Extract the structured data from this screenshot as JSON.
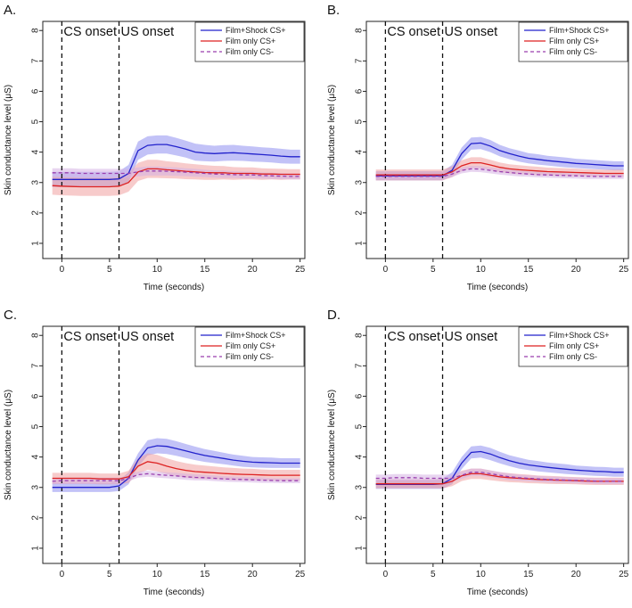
{
  "figure": {
    "panels": [
      "A.",
      "B.",
      "C.",
      "D."
    ]
  },
  "colors": {
    "shock": "#2222cc",
    "shock_band": "#8f8ff0",
    "red": "#dd2222",
    "red_band": "#f0a0a0",
    "cs_minus": "#9a3fae",
    "cs_minus_band": "#d6b2e3",
    "axis": "#111111"
  },
  "chart_data": [
    {
      "type": "line",
      "panel": "A.",
      "xlabel": "Time (seconds)",
      "ylabel": "Skin conductance level (μS)",
      "xlim": [
        -2,
        25.5
      ],
      "ylim": [
        0.5,
        8.3
      ],
      "xticks": [
        0,
        5,
        10,
        15,
        20,
        25
      ],
      "yticks": [
        1,
        2,
        3,
        4,
        5,
        6,
        7,
        8
      ],
      "vlines": [
        {
          "x": 0,
          "label": "CS onset"
        },
        {
          "x": 6,
          "label": "US onset"
        }
      ],
      "legend": {
        "position": "top-right"
      },
      "x": [
        -1,
        0,
        1,
        2,
        3,
        4,
        5,
        6,
        7,
        8,
        9,
        10,
        11,
        12,
        13,
        14,
        15,
        16,
        17,
        18,
        19,
        20,
        21,
        22,
        23,
        24,
        25
      ],
      "series": [
        {
          "name": "Film+Shock CS+",
          "style": "solid",
          "color_key": "shock",
          "values": [
            3.1,
            3.1,
            3.1,
            3.1,
            3.1,
            3.1,
            3.1,
            3.12,
            3.3,
            4.05,
            4.22,
            4.25,
            4.25,
            4.18,
            4.1,
            4.0,
            3.97,
            3.95,
            3.97,
            3.98,
            3.96,
            3.94,
            3.92,
            3.9,
            3.87,
            3.85,
            3.85
          ],
          "band": [
            0.25,
            0.25,
            0.25,
            0.25,
            0.25,
            0.25,
            0.25,
            0.25,
            0.28,
            0.3,
            0.3,
            0.3,
            0.3,
            0.29,
            0.28,
            0.28,
            0.27,
            0.26,
            0.26,
            0.26,
            0.25,
            0.25,
            0.24,
            0.24,
            0.24,
            0.23,
            0.23
          ]
        },
        {
          "name": "Film only CS+",
          "style": "solid",
          "color_key": "red",
          "values": [
            2.9,
            2.88,
            2.87,
            2.86,
            2.86,
            2.86,
            2.86,
            2.88,
            3.0,
            3.35,
            3.45,
            3.45,
            3.42,
            3.4,
            3.37,
            3.35,
            3.33,
            3.32,
            3.32,
            3.3,
            3.3,
            3.3,
            3.28,
            3.28,
            3.27,
            3.27,
            3.27
          ],
          "band": [
            0.3,
            0.3,
            0.3,
            0.3,
            0.3,
            0.3,
            0.3,
            0.3,
            0.3,
            0.3,
            0.3,
            0.3,
            0.28,
            0.27,
            0.26,
            0.25,
            0.24,
            0.23,
            0.22,
            0.21,
            0.2,
            0.2,
            0.19,
            0.18,
            0.18,
            0.17,
            0.17
          ]
        },
        {
          "name": "Film only CS-",
          "style": "dashed",
          "color_key": "cs_minus",
          "values": [
            3.32,
            3.32,
            3.32,
            3.3,
            3.3,
            3.3,
            3.3,
            3.3,
            3.3,
            3.35,
            3.38,
            3.38,
            3.37,
            3.36,
            3.34,
            3.32,
            3.3,
            3.28,
            3.27,
            3.26,
            3.25,
            3.25,
            3.23,
            3.22,
            3.21,
            3.2,
            3.2
          ],
          "band": [
            0.15,
            0.15,
            0.15,
            0.15,
            0.15,
            0.15,
            0.15,
            0.15,
            0.15,
            0.15,
            0.15,
            0.15,
            0.14,
            0.14,
            0.13,
            0.13,
            0.12,
            0.12,
            0.12,
            0.11,
            0.11,
            0.11,
            0.1,
            0.1,
            0.1,
            0.1,
            0.1
          ]
        }
      ]
    },
    {
      "type": "line",
      "panel": "B.",
      "xlabel": "Time (seconds)",
      "ylabel": "Skin conductance level (μS)",
      "xlim": [
        -2,
        25.5
      ],
      "ylim": [
        0.5,
        8.3
      ],
      "xticks": [
        0,
        5,
        10,
        15,
        20,
        25
      ],
      "yticks": [
        1,
        2,
        3,
        4,
        5,
        6,
        7,
        8
      ],
      "vlines": [
        {
          "x": 0,
          "label": "CS onset"
        },
        {
          "x": 6,
          "label": "US onset"
        }
      ],
      "legend": {
        "position": "top-right"
      },
      "x": [
        -1,
        0,
        1,
        2,
        3,
        4,
        5,
        6,
        7,
        8,
        9,
        10,
        11,
        12,
        13,
        14,
        15,
        16,
        17,
        18,
        19,
        20,
        21,
        22,
        23,
        24,
        25
      ],
      "series": [
        {
          "name": "Film+Shock CS+",
          "style": "solid",
          "color_key": "shock",
          "values": [
            3.22,
            3.22,
            3.22,
            3.22,
            3.22,
            3.22,
            3.22,
            3.22,
            3.4,
            3.95,
            4.28,
            4.3,
            4.2,
            4.05,
            3.95,
            3.87,
            3.8,
            3.76,
            3.72,
            3.69,
            3.66,
            3.63,
            3.61,
            3.59,
            3.57,
            3.55,
            3.55
          ],
          "band": [
            0.15,
            0.15,
            0.15,
            0.15,
            0.15,
            0.15,
            0.15,
            0.15,
            0.18,
            0.2,
            0.2,
            0.2,
            0.2,
            0.19,
            0.18,
            0.18,
            0.17,
            0.17,
            0.16,
            0.16,
            0.16,
            0.15,
            0.15,
            0.15,
            0.15,
            0.15,
            0.15
          ]
        },
        {
          "name": "Film only CS+",
          "style": "solid",
          "color_key": "red",
          "values": [
            3.25,
            3.25,
            3.25,
            3.25,
            3.25,
            3.25,
            3.25,
            3.25,
            3.35,
            3.55,
            3.65,
            3.65,
            3.58,
            3.5,
            3.45,
            3.42,
            3.4,
            3.38,
            3.36,
            3.35,
            3.34,
            3.33,
            3.32,
            3.31,
            3.3,
            3.3,
            3.3
          ],
          "band": [
            0.18,
            0.18,
            0.18,
            0.18,
            0.18,
            0.18,
            0.18,
            0.18,
            0.18,
            0.18,
            0.18,
            0.18,
            0.17,
            0.16,
            0.15,
            0.15,
            0.14,
            0.14,
            0.13,
            0.13,
            0.13,
            0.13,
            0.12,
            0.12,
            0.12,
            0.12,
            0.12
          ]
        },
        {
          "name": "Film only CS-",
          "style": "dashed",
          "color_key": "cs_minus",
          "values": [
            3.2,
            3.2,
            3.2,
            3.2,
            3.2,
            3.2,
            3.2,
            3.2,
            3.28,
            3.4,
            3.45,
            3.44,
            3.4,
            3.36,
            3.33,
            3.3,
            3.28,
            3.26,
            3.25,
            3.24,
            3.23,
            3.22,
            3.21,
            3.2,
            3.2,
            3.2,
            3.2
          ],
          "band": [
            0.1,
            0.1,
            0.1,
            0.1,
            0.1,
            0.1,
            0.1,
            0.1,
            0.1,
            0.1,
            0.1,
            0.1,
            0.1,
            0.1,
            0.1,
            0.1,
            0.09,
            0.09,
            0.09,
            0.09,
            0.09,
            0.09,
            0.09,
            0.08,
            0.08,
            0.08,
            0.08
          ]
        }
      ]
    },
    {
      "type": "line",
      "panel": "C.",
      "xlabel": "Time (seconds)",
      "ylabel": "Skin conductance level (μS)",
      "xlim": [
        -2,
        25.5
      ],
      "ylim": [
        0.5,
        8.3
      ],
      "xticks": [
        0,
        5,
        10,
        15,
        20,
        25
      ],
      "yticks": [
        1,
        2,
        3,
        4,
        5,
        6,
        7,
        8
      ],
      "vlines": [
        {
          "x": 0,
          "label": "CS onset"
        },
        {
          "x": 6,
          "label": "US onset"
        }
      ],
      "legend": {
        "position": "top-right"
      },
      "x": [
        -1,
        0,
        1,
        2,
        3,
        4,
        5,
        6,
        7,
        8,
        9,
        10,
        11,
        12,
        13,
        14,
        15,
        16,
        17,
        18,
        19,
        20,
        21,
        22,
        23,
        24,
        25
      ],
      "series": [
        {
          "name": "Film+Shock CS+",
          "style": "solid",
          "color_key": "shock",
          "values": [
            3.0,
            3.0,
            3.0,
            3.0,
            3.0,
            3.0,
            3.0,
            3.05,
            3.3,
            3.9,
            4.3,
            4.37,
            4.35,
            4.28,
            4.2,
            4.12,
            4.05,
            4.0,
            3.95,
            3.9,
            3.86,
            3.83,
            3.82,
            3.81,
            3.8,
            3.8,
            3.8
          ],
          "band": [
            0.15,
            0.15,
            0.15,
            0.15,
            0.15,
            0.15,
            0.15,
            0.17,
            0.2,
            0.22,
            0.25,
            0.25,
            0.25,
            0.24,
            0.23,
            0.22,
            0.21,
            0.2,
            0.19,
            0.18,
            0.18,
            0.17,
            0.17,
            0.17,
            0.16,
            0.16,
            0.16
          ]
        },
        {
          "name": "Film only CS+",
          "style": "solid",
          "color_key": "red",
          "values": [
            3.3,
            3.3,
            3.3,
            3.3,
            3.3,
            3.28,
            3.28,
            3.28,
            3.35,
            3.7,
            3.85,
            3.8,
            3.7,
            3.62,
            3.56,
            3.52,
            3.5,
            3.48,
            3.46,
            3.44,
            3.43,
            3.42,
            3.41,
            3.4,
            3.4,
            3.4,
            3.4
          ],
          "band": [
            0.18,
            0.18,
            0.18,
            0.18,
            0.18,
            0.18,
            0.18,
            0.18,
            0.2,
            0.25,
            0.27,
            0.27,
            0.26,
            0.25,
            0.24,
            0.23,
            0.22,
            0.21,
            0.2,
            0.2,
            0.19,
            0.19,
            0.18,
            0.18,
            0.18,
            0.18,
            0.18
          ]
        },
        {
          "name": "Film only CS-",
          "style": "dashed",
          "color_key": "cs_minus",
          "values": [
            3.2,
            3.22,
            3.22,
            3.22,
            3.22,
            3.22,
            3.22,
            3.22,
            3.3,
            3.42,
            3.45,
            3.42,
            3.4,
            3.38,
            3.35,
            3.33,
            3.32,
            3.3,
            3.28,
            3.27,
            3.26,
            3.25,
            3.24,
            3.23,
            3.22,
            3.22,
            3.22
          ],
          "band": [
            0.1,
            0.1,
            0.1,
            0.1,
            0.1,
            0.1,
            0.1,
            0.1,
            0.1,
            0.1,
            0.1,
            0.1,
            0.1,
            0.1,
            0.1,
            0.1,
            0.09,
            0.09,
            0.09,
            0.09,
            0.09,
            0.09,
            0.09,
            0.08,
            0.08,
            0.08,
            0.08
          ]
        }
      ]
    },
    {
      "type": "line",
      "panel": "D.",
      "xlabel": "Time (seconds)",
      "ylabel": "Skin conductance level (μS)",
      "xlim": [
        -2,
        25.5
      ],
      "ylim": [
        0.5,
        8.3
      ],
      "xticks": [
        0,
        5,
        10,
        15,
        20,
        25
      ],
      "yticks": [
        1,
        2,
        3,
        4,
        5,
        6,
        7,
        8
      ],
      "vlines": [
        {
          "x": 0,
          "label": "CS onset"
        },
        {
          "x": 6,
          "label": "US onset"
        }
      ],
      "legend": {
        "position": "top-right"
      },
      "x": [
        -1,
        0,
        1,
        2,
        3,
        4,
        5,
        6,
        7,
        8,
        9,
        10,
        11,
        12,
        13,
        14,
        15,
        16,
        17,
        18,
        19,
        20,
        21,
        22,
        23,
        24,
        25
      ],
      "series": [
        {
          "name": "Film+Shock CS+",
          "style": "solid",
          "color_key": "shock",
          "values": [
            3.1,
            3.1,
            3.1,
            3.1,
            3.1,
            3.1,
            3.1,
            3.12,
            3.3,
            3.8,
            4.15,
            4.18,
            4.1,
            3.98,
            3.88,
            3.8,
            3.74,
            3.7,
            3.66,
            3.63,
            3.6,
            3.57,
            3.55,
            3.53,
            3.52,
            3.5,
            3.5
          ],
          "band": [
            0.15,
            0.15,
            0.15,
            0.15,
            0.15,
            0.15,
            0.15,
            0.17,
            0.2,
            0.2,
            0.2,
            0.2,
            0.2,
            0.19,
            0.18,
            0.18,
            0.17,
            0.17,
            0.16,
            0.16,
            0.16,
            0.15,
            0.15,
            0.15,
            0.15,
            0.15,
            0.15
          ]
        },
        {
          "name": "Film only CS+",
          "style": "solid",
          "color_key": "red",
          "values": [
            3.12,
            3.12,
            3.12,
            3.12,
            3.12,
            3.12,
            3.12,
            3.12,
            3.2,
            3.38,
            3.45,
            3.45,
            3.4,
            3.35,
            3.32,
            3.3,
            3.28,
            3.26,
            3.25,
            3.24,
            3.23,
            3.22,
            3.21,
            3.2,
            3.2,
            3.2,
            3.2
          ],
          "band": [
            0.15,
            0.15,
            0.15,
            0.15,
            0.15,
            0.15,
            0.15,
            0.15,
            0.16,
            0.17,
            0.17,
            0.17,
            0.16,
            0.15,
            0.15,
            0.14,
            0.14,
            0.13,
            0.13,
            0.13,
            0.12,
            0.12,
            0.12,
            0.12,
            0.12,
            0.12,
            0.12
          ]
        },
        {
          "name": "Film only CS-",
          "style": "dashed",
          "color_key": "cs_minus",
          "values": [
            3.3,
            3.3,
            3.32,
            3.32,
            3.32,
            3.3,
            3.3,
            3.3,
            3.3,
            3.4,
            3.5,
            3.5,
            3.45,
            3.4,
            3.35,
            3.32,
            3.3,
            3.28,
            3.26,
            3.25,
            3.24,
            3.23,
            3.22,
            3.21,
            3.2,
            3.2,
            3.2
          ],
          "band": [
            0.12,
            0.12,
            0.12,
            0.12,
            0.12,
            0.12,
            0.12,
            0.12,
            0.12,
            0.12,
            0.12,
            0.12,
            0.11,
            0.11,
            0.11,
            0.1,
            0.1,
            0.1,
            0.1,
            0.1,
            0.1,
            0.1,
            0.1,
            0.1,
            0.1,
            0.1,
            0.1
          ]
        }
      ]
    }
  ]
}
